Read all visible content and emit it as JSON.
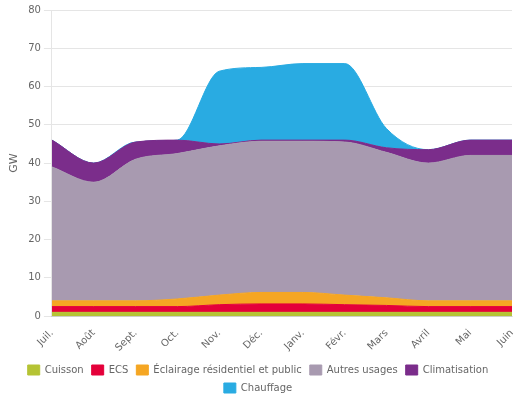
{
  "chart_data": {
    "type": "area",
    "categories": [
      "Juil.",
      "Août",
      "Sept.",
      "Oct.",
      "Nov.",
      "Déc.",
      "Janv.",
      "Févr.",
      "Mars",
      "Avril",
      "Mai",
      "Juin"
    ],
    "series": [
      {
        "name": "Cuisson",
        "color": "#b5c334",
        "values": [
          1.0,
          1.0,
          1.0,
          1.0,
          1.0,
          1.0,
          1.0,
          1.0,
          1.0,
          1.0,
          1.0,
          1.0
        ]
      },
      {
        "name": "ECS",
        "color": "#e4003a",
        "values": [
          1.5,
          1.5,
          1.5,
          1.5,
          2.0,
          2.2,
          2.2,
          2.0,
          1.8,
          1.5,
          1.5,
          1.5
        ]
      },
      {
        "name": "Éclairage résidentiel et public",
        "color": "#f5a623",
        "values": [
          1.5,
          1.5,
          1.5,
          2.0,
          2.5,
          3.0,
          3.0,
          2.5,
          2.0,
          1.5,
          1.5,
          1.5
        ]
      },
      {
        "name": "Autres usages",
        "color": "#a89ab0",
        "values": [
          35.0,
          31.0,
          37.0,
          38.0,
          39.0,
          39.5,
          39.5,
          40.0,
          38.0,
          36.0,
          38.0,
          38.0
        ]
      },
      {
        "name": "Climatisation",
        "color": "#7b2d8b",
        "values": [
          7.0,
          5.0,
          4.5,
          3.5,
          0.5,
          0.3,
          0.3,
          0.5,
          1.2,
          3.5,
          4.0,
          4.0
        ]
      },
      {
        "name": "Chauffage",
        "color": "#29abe2",
        "values": [
          0.0,
          0.0,
          0.0,
          0.0,
          19.0,
          19.0,
          20.0,
          20.0,
          5.0,
          0.0,
          0.0,
          0.0
        ]
      }
    ],
    "ylabel": "GW",
    "ylim": [
      0,
      80
    ],
    "yticks": [
      0,
      10,
      20,
      30,
      40,
      50,
      60,
      70,
      80
    ],
    "stacked": true,
    "grid": true,
    "legend": "bottom"
  }
}
